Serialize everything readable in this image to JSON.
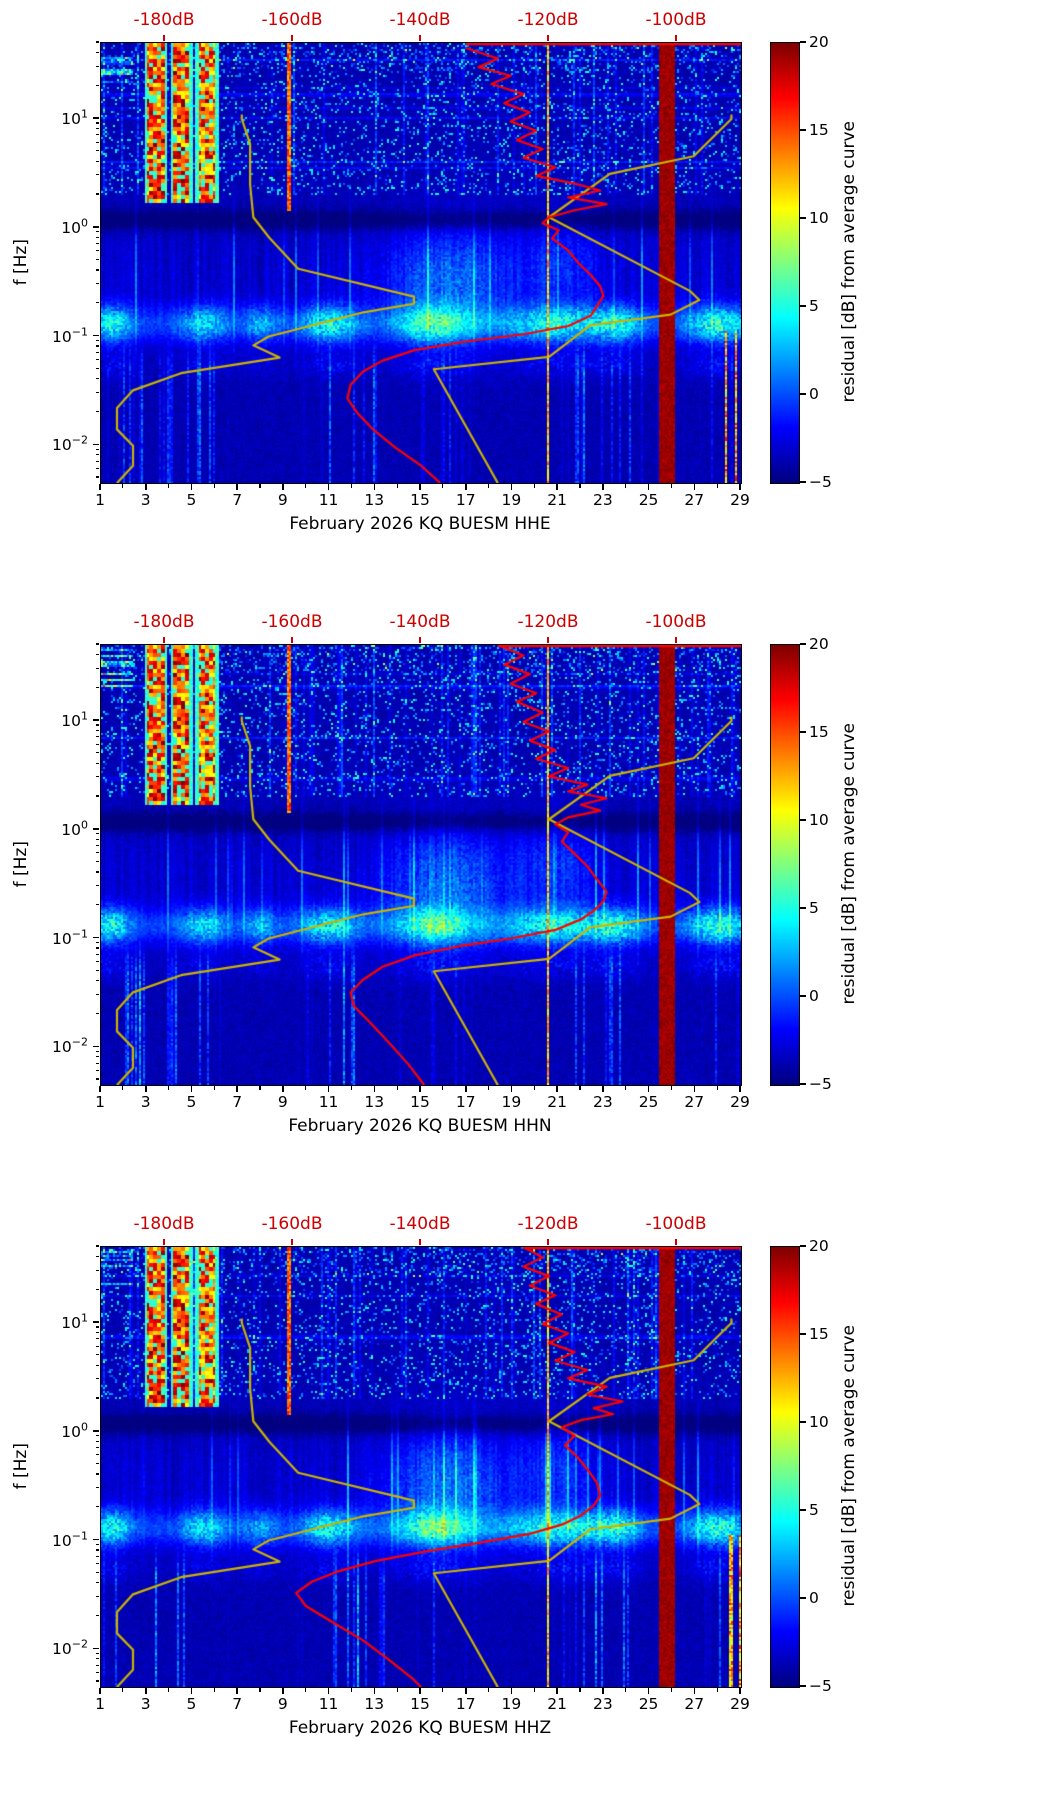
{
  "page": {
    "background": "#ffffff"
  },
  "colors": {
    "top_axis_text": "#cc0000",
    "noise_model_curve": "#ccb300",
    "median_curve": "#ff0000",
    "background_low_residual": "#00007f",
    "saturated_high_residual": "#7f0000"
  },
  "noise_models": {
    "nlnm_db_hz": [
      [
        -168,
        11
      ],
      [
        -168,
        10
      ],
      [
        -166.7,
        5.9
      ],
      [
        -166.7,
        2.5
      ],
      [
        -166.2,
        1.25
      ],
      [
        -163.7,
        0.81
      ],
      [
        -159.2,
        0.42
      ],
      [
        -141.1,
        0.233
      ],
      [
        -141.1,
        0.2
      ],
      [
        -149,
        0.167
      ],
      [
        -163.8,
        0.1
      ],
      [
        -166.2,
        0.083
      ],
      [
        -162.1,
        0.064
      ],
      [
        -177.5,
        0.046
      ],
      [
        -185,
        0.032
      ],
      [
        -187.5,
        0.022
      ],
      [
        -187.5,
        0.014
      ],
      [
        -185,
        0.0099
      ],
      [
        -185,
        0.0065
      ],
      [
        -187.5,
        0.0045
      ]
    ],
    "nhnm_db_hz": [
      [
        -91.5,
        11
      ],
      [
        -91.5,
        10
      ],
      [
        -97.4,
        4.55
      ],
      [
        -110.5,
        3.13
      ],
      [
        -120,
        1.25
      ],
      [
        -98,
        0.263
      ],
      [
        -96.5,
        0.217
      ],
      [
        -101,
        0.159
      ],
      [
        -113.5,
        0.127
      ],
      [
        -120,
        0.065
      ],
      [
        -138,
        0.05
      ],
      [
        -128,
        0.0045
      ]
    ]
  },
  "chart_data": [
    {
      "type": "heatmap",
      "station_channel": "HHE",
      "xlabel": "February 2026 KQ BUESM  HHE",
      "ylabel": "f [Hz]",
      "x_range_days": [
        1,
        29
      ],
      "x_major_ticks": [
        1,
        3,
        5,
        7,
        9,
        11,
        13,
        15,
        17,
        19,
        21,
        23,
        25,
        27,
        29
      ],
      "y_scale": "log",
      "y_range_hz": [
        0.0045,
        50
      ],
      "y_major_ticks_hz": [
        0.01,
        0.1,
        1,
        10
      ],
      "top_axis": {
        "range_db": [
          -190,
          -90
        ],
        "ticks_db": [
          -180,
          -160,
          -140,
          -120,
          -100
        ],
        "tick_labels": [
          "-180dB",
          "-160dB",
          "-140dB",
          "-120dB",
          "-100dB"
        ]
      },
      "colorbar": {
        "label": "residual [dB] from average curve",
        "min": -5,
        "max": 20,
        "ticks": [
          -5,
          0,
          5,
          10,
          15,
          20
        ],
        "colormap": "jet"
      },
      "median_curve_db_hz": [
        [
          -133,
          45
        ],
        [
          -128,
          36
        ],
        [
          -131,
          30
        ],
        [
          -126,
          25
        ],
        [
          -129,
          21
        ],
        [
          -124,
          17
        ],
        [
          -127,
          14
        ],
        [
          -123,
          11.5
        ],
        [
          -126,
          9.5
        ],
        [
          -122,
          7.8
        ],
        [
          -125,
          6.4
        ],
        [
          -121,
          5.3
        ],
        [
          -124,
          4.4
        ],
        [
          -119,
          3.6
        ],
        [
          -122,
          3.0
        ],
        [
          -116,
          2.55
        ],
        [
          -112,
          2.2
        ],
        [
          -117,
          1.9
        ],
        [
          -111,
          1.65
        ],
        [
          -116,
          1.45
        ],
        [
          -120,
          1.25
        ],
        [
          -121,
          1.1
        ],
        [
          -118.5,
          0.95
        ],
        [
          -119.5,
          0.8
        ],
        [
          -117,
          0.62
        ],
        [
          -115.5,
          0.48
        ],
        [
          -113.5,
          0.37
        ],
        [
          -112,
          0.29
        ],
        [
          -111.5,
          0.235
        ],
        [
          -112.5,
          0.19
        ],
        [
          -113.5,
          0.155
        ],
        [
          -117,
          0.125
        ],
        [
          -124,
          0.105
        ],
        [
          -133,
          0.09
        ],
        [
          -141,
          0.075
        ],
        [
          -146,
          0.06
        ],
        [
          -149,
          0.048
        ],
        [
          -151,
          0.036
        ],
        [
          -151.5,
          0.027
        ],
        [
          -150,
          0.02
        ],
        [
          -147.5,
          0.014
        ],
        [
          -144,
          0.0095
        ],
        [
          -140,
          0.0065
        ],
        [
          -137,
          0.0045
        ]
      ],
      "notable_features": [
        "saturated +20 dB column days 25.5-26 at all frequencies",
        "strong red residual bursts days 3-6 above 2 Hz",
        "narrow red line day 9.2 above 1.5 Hz",
        "bright microseism band 0.08-0.3 Hz recurring through month",
        "cyan storm signal days 13-19 around 0.1-1 Hz",
        "red low-frequency bursts days 28-29"
      ]
    },
    {
      "type": "heatmap",
      "station_channel": "HHN",
      "xlabel": "February 2026 KQ BUESM  HHN",
      "ylabel": "f [Hz]",
      "x_range_days": [
        1,
        29
      ],
      "x_major_ticks": [
        1,
        3,
        5,
        7,
        9,
        11,
        13,
        15,
        17,
        19,
        21,
        23,
        25,
        27,
        29
      ],
      "y_scale": "log",
      "y_range_hz": [
        0.0045,
        50
      ],
      "y_major_ticks_hz": [
        0.01,
        0.1,
        1,
        10
      ],
      "top_axis": {
        "range_db": [
          -190,
          -90
        ],
        "ticks_db": [
          -180,
          -160,
          -140,
          -120,
          -100
        ],
        "tick_labels": [
          "-180dB",
          "-160dB",
          "-140dB",
          "-120dB",
          "-100dB"
        ]
      },
      "colorbar": {
        "label": "residual [dB] from average curve",
        "min": -5,
        "max": 20,
        "ticks": [
          -5,
          0,
          5,
          10,
          15,
          20
        ],
        "colormap": "jet"
      },
      "median_curve_db_hz": [
        [
          -128,
          50
        ],
        [
          -124,
          40
        ],
        [
          -127,
          33
        ],
        [
          -123,
          27
        ],
        [
          -126,
          22
        ],
        [
          -122,
          18
        ],
        [
          -125,
          15
        ],
        [
          -121,
          12
        ],
        [
          -124,
          9.8
        ],
        [
          -120,
          8
        ],
        [
          -123,
          6.6
        ],
        [
          -119,
          5.4
        ],
        [
          -122,
          4.5
        ],
        [
          -117,
          3.7
        ],
        [
          -120,
          3.1
        ],
        [
          -114,
          2.6
        ],
        [
          -117,
          2.25
        ],
        [
          -111,
          1.95
        ],
        [
          -115,
          1.7
        ],
        [
          -112,
          1.5
        ],
        [
          -117,
          1.3
        ],
        [
          -119,
          1.12
        ],
        [
          -117,
          0.95
        ],
        [
          -118,
          0.78
        ],
        [
          -116,
          0.6
        ],
        [
          -114,
          0.46
        ],
        [
          -112.5,
          0.35
        ],
        [
          -111,
          0.27
        ],
        [
          -111.5,
          0.22
        ],
        [
          -113,
          0.18
        ],
        [
          -115,
          0.15
        ],
        [
          -119,
          0.12
        ],
        [
          -126,
          0.1
        ],
        [
          -134,
          0.085
        ],
        [
          -141,
          0.07
        ],
        [
          -146,
          0.055
        ],
        [
          -149,
          0.042
        ],
        [
          -151,
          0.032
        ],
        [
          -150.5,
          0.024
        ],
        [
          -148,
          0.017
        ],
        [
          -145,
          0.011
        ],
        [
          -142,
          0.007
        ],
        [
          -139.5,
          0.0045
        ]
      ],
      "notable_features": [
        "saturated +20 dB column days 25.5-26 at all frequencies",
        "strong red residual bursts days 3-6 above 2 Hz",
        "narrow red line day 9.2 above 1.5 Hz",
        "bright microseism band 0.08-0.3 Hz recurring through month",
        "cyan storm signal days 13-19 around 0.1-1 Hz"
      ]
    },
    {
      "type": "heatmap",
      "station_channel": "HHZ",
      "xlabel": "February 2026 KQ BUESM  HHZ",
      "ylabel": "f [Hz]",
      "x_range_days": [
        1,
        29
      ],
      "x_major_ticks": [
        1,
        3,
        5,
        7,
        9,
        11,
        13,
        15,
        17,
        19,
        21,
        23,
        25,
        27,
        29
      ],
      "y_scale": "log",
      "y_range_hz": [
        0.0045,
        50
      ],
      "y_major_ticks_hz": [
        0.01,
        0.1,
        1,
        10
      ],
      "top_axis": {
        "range_db": [
          -190,
          -90
        ],
        "ticks_db": [
          -180,
          -160,
          -140,
          -120,
          -100
        ],
        "tick_labels": [
          "-180dB",
          "-160dB",
          "-140dB",
          "-120dB",
          "-100dB"
        ]
      },
      "colorbar": {
        "label": "residual [dB] from average curve",
        "min": -5,
        "max": 20,
        "ticks": [
          -5,
          0,
          5,
          10,
          15,
          20
        ],
        "colormap": "jet"
      },
      "median_curve_db_hz": [
        [
          -124,
          50
        ],
        [
          -121,
          40
        ],
        [
          -124,
          33
        ],
        [
          -120,
          27
        ],
        [
          -123,
          22
        ],
        [
          -119,
          18
        ],
        [
          -122,
          15
        ],
        [
          -118,
          12
        ],
        [
          -121,
          9.8
        ],
        [
          -117,
          8
        ],
        [
          -120,
          6.6
        ],
        [
          -116,
          5.4
        ],
        [
          -119,
          4.5
        ],
        [
          -114,
          3.7
        ],
        [
          -117,
          3.1
        ],
        [
          -111,
          2.6
        ],
        [
          -114,
          2.2
        ],
        [
          -108.5,
          1.9
        ],
        [
          -113,
          1.65
        ],
        [
          -110,
          1.45
        ],
        [
          -115,
          1.28
        ],
        [
          -118,
          1.1
        ],
        [
          -116,
          0.92
        ],
        [
          -117.5,
          0.75
        ],
        [
          -115.5,
          0.58
        ],
        [
          -114,
          0.45
        ],
        [
          -112.5,
          0.34
        ],
        [
          -112,
          0.26
        ],
        [
          -113,
          0.21
        ],
        [
          -115,
          0.17
        ],
        [
          -118,
          0.14
        ],
        [
          -123,
          0.115
        ],
        [
          -131,
          0.095
        ],
        [
          -139,
          0.08
        ],
        [
          -147,
          0.065
        ],
        [
          -153,
          0.052
        ],
        [
          -157,
          0.042
        ],
        [
          -159.5,
          0.033
        ],
        [
          -158,
          0.025
        ],
        [
          -154,
          0.018
        ],
        [
          -149,
          0.012
        ],
        [
          -145,
          0.008
        ],
        [
          -141.5,
          0.0055
        ],
        [
          -140,
          0.0045
        ]
      ],
      "notable_features": [
        "saturated +20 dB column days 25.5-26 at all frequencies",
        "strong red residual bursts days 3-6 above 2 Hz",
        "narrow red line day 9.2 above 1.5 Hz",
        "bright microseism band 0.08-0.3 Hz recurring through month",
        "red low-frequency bursts days 28-29"
      ]
    }
  ]
}
